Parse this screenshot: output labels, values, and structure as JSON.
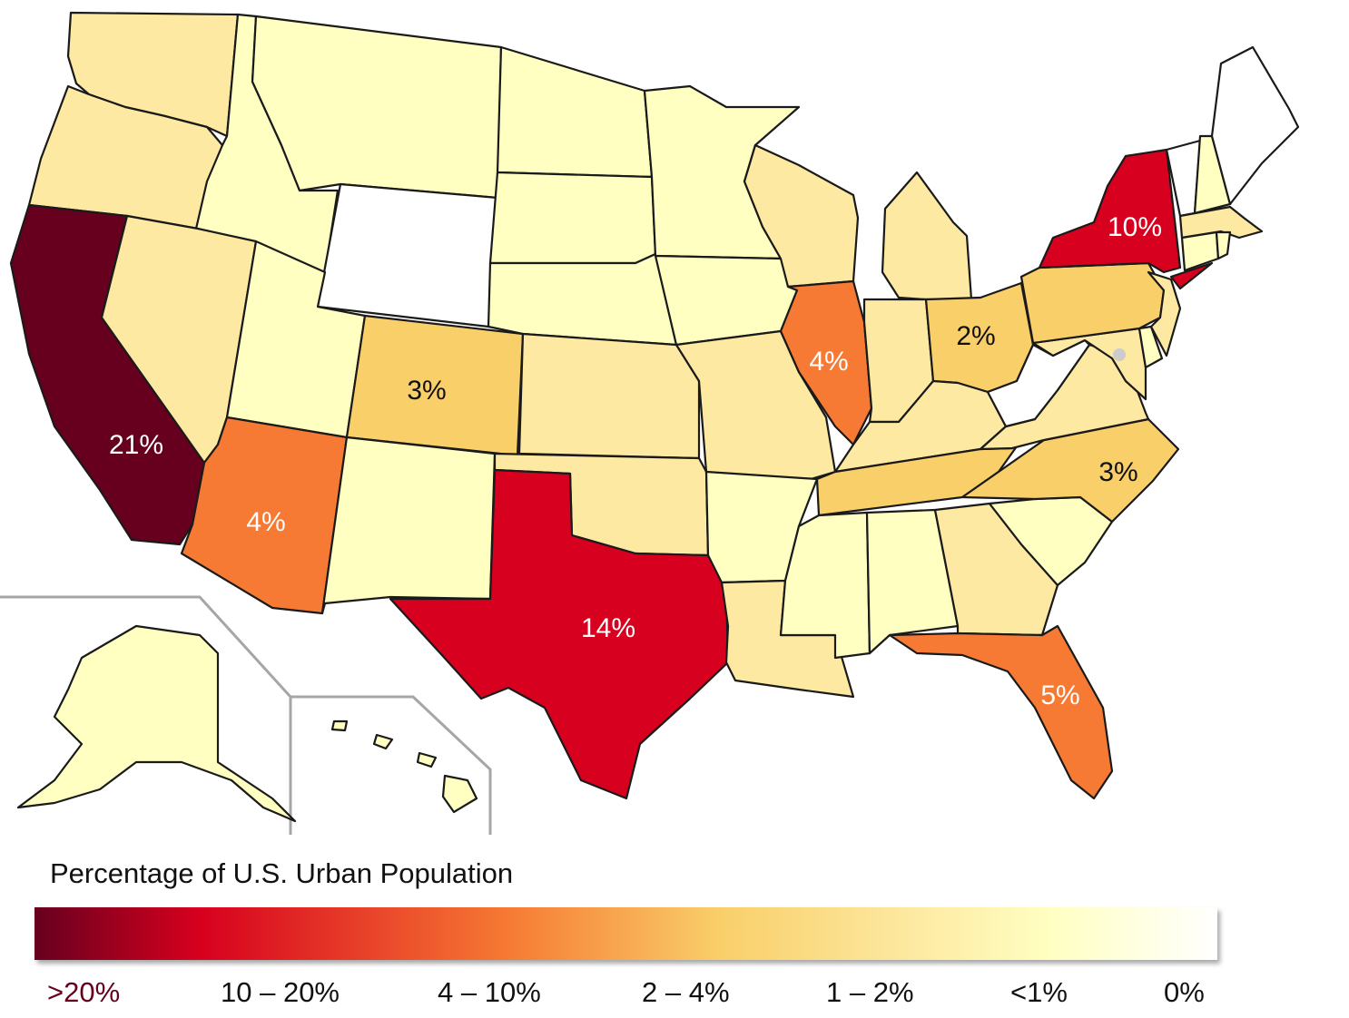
{
  "title": "Percentage of U.S. Urban Population",
  "colors": {
    "gt20": "#67001f",
    "p10_20": "#d7001e",
    "p4_10": "#f67a33",
    "p2_4": "#f9cf6a",
    "p1_2": "#fde9a1",
    "lt1": "#ffffc2",
    "zero": "#ffffff",
    "inset_border": "#a6a6a6",
    "dc_dot": "#cccccc"
  },
  "legend": {
    "ticks": [
      ">20%",
      "10 – 20%",
      "4 – 10%",
      "2 – 4%",
      "1 – 2%",
      "<1%",
      "0%"
    ]
  },
  "state_labels": {
    "CA": "21%",
    "TX": "14%",
    "NY": "10%",
    "FL": "5%",
    "IL": "4%",
    "AZ": "4%",
    "CO": "3%",
    "NC": "3%",
    "OH": "2%"
  },
  "chart_data": {
    "type": "choropleth",
    "title": "Percentage of U.S. Urban Population",
    "categories": [
      ">20%",
      "10 – 20%",
      "4 – 10%",
      "2 – 4%",
      "1 – 2%",
      "<1%",
      "0%"
    ],
    "labeled_values": [
      {
        "state": "California",
        "value": "21%"
      },
      {
        "state": "Texas",
        "value": "14%"
      },
      {
        "state": "New York",
        "value": "10%"
      },
      {
        "state": "Florida",
        "value": "5%"
      },
      {
        "state": "Illinois",
        "value": "4%"
      },
      {
        "state": "Arizona",
        "value": "4%"
      },
      {
        "state": "Colorado",
        "value": "3%"
      },
      {
        "state": "North Carolina",
        "value": "3%"
      },
      {
        "state": "Ohio",
        "value": "2%"
      }
    ],
    "category_by_state": {
      "CA": ">20%",
      "TX": "10 – 20%",
      "NY": "10 – 20%",
      "NJ": "1 – 2%",
      "FL": "4 – 10%",
      "IL": "4 – 10%",
      "AZ": "4 – 10%",
      "CO": "2 – 4%",
      "NC": "2 – 4%",
      "OH": "2 – 4%",
      "PA": "2 – 4%",
      "TN": "2 – 4%",
      "WA": "1 – 2%",
      "OR": "1 – 2%",
      "NV": "1 – 2%",
      "KS": "1 – 2%",
      "OK": "1 – 2%",
      "LA": "1 – 2%",
      "MO": "1 – 2%",
      "WI": "1 – 2%",
      "MI": "1 – 2%",
      "IN": "1 – 2%",
      "KY": "1 – 2%",
      "GA": "1 – 2%",
      "VA": "1 – 2%",
      "MD": "1 – 2%",
      "MA": "1 – 2%",
      "ID": "<1%",
      "MT": "<1%",
      "UT": "<1%",
      "NM": "<1%",
      "ND": "<1%",
      "SD": "<1%",
      "NE": "<1%",
      "MN": "<1%",
      "IA": "<1%",
      "AR": "<1%",
      "MS": "<1%",
      "AL": "<1%",
      "SC": "<1%",
      "NH": "<1%",
      "CT": "<1%",
      "RI": "<1%",
      "DE": "<1%",
      "AK": "<1%",
      "HI": "<1%",
      "WY": "0%",
      "WV": "0%",
      "VT": "0%",
      "ME": "0%"
    }
  }
}
